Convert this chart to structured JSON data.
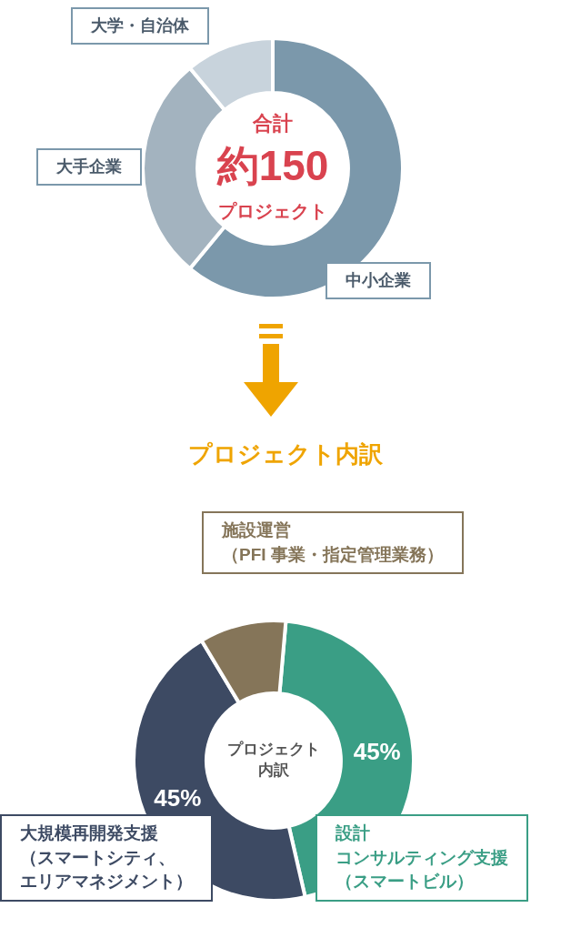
{
  "chart_data": [
    {
      "type": "donut",
      "categories": [
        "中小企業",
        "大手企業",
        "大学・自治体"
      ],
      "values": [
        61,
        28,
        11
      ],
      "colors": [
        "#7b98ab",
        "#a3b3bf",
        "#c8d3dc"
      ],
      "legend": false,
      "annotations": [
        "合計",
        "約150",
        "プロジェクト"
      ]
    },
    {
      "type": "donut",
      "title": "プロジェクト内訳",
      "categories": [
        "設計コンサルティング支援（スマートビル）",
        "大規模再開発支援（スマートシティ、エリアマネジメント）",
        "施設運営（PFI 事業・指定管理業務）"
      ],
      "values": [
        45,
        45,
        10
      ],
      "value_labels": [
        "45%",
        "45%",
        null
      ],
      "colors": [
        "#3a9e85",
        "#3d4a63",
        "#857559"
      ],
      "legend": false,
      "annotations": [
        "プロジェクト内訳"
      ]
    }
  ]
}
